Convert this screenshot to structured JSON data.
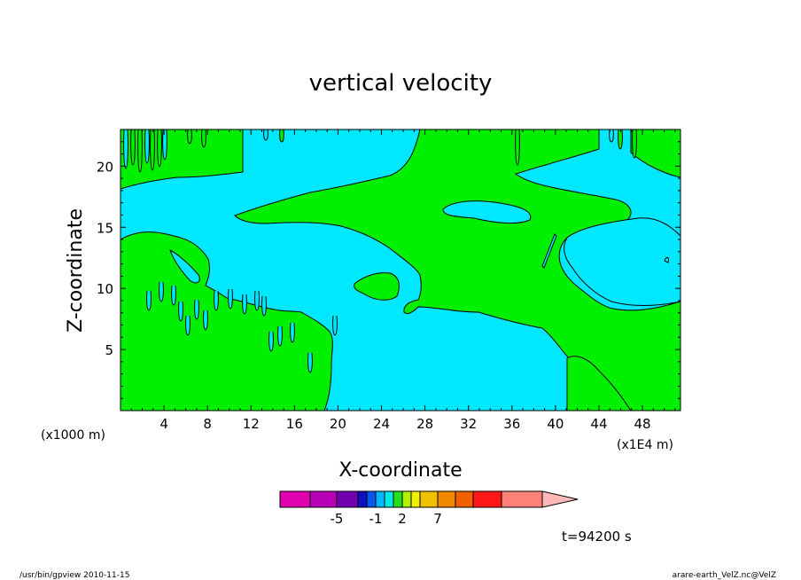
{
  "chart_data": {
    "type": "heatmap",
    "title": "vertical velocity",
    "xlabel": "X-coordinate",
    "ylabel": "Z-coordinate",
    "x_unit_left": "(x1000 m)",
    "x_unit_right": "(x1E4 m)",
    "xlim": [
      0,
      51.5
    ],
    "ylim": [
      0,
      23
    ],
    "x_ticks": [
      4,
      8,
      12,
      16,
      20,
      24,
      28,
      32,
      36,
      40,
      44,
      48
    ],
    "y_ticks": [
      5,
      10,
      15,
      20
    ],
    "fields": {
      "positive_color": "#00f000",
      "negative_color": "#00e8ff",
      "contour_color": "#000000"
    },
    "colorbar": {
      "colors": [
        "#e000b0",
        "#b800b8",
        "#7000b0",
        "#1010c0",
        "#0058f0",
        "#00b8ff",
        "#00e8e8",
        "#20e020",
        "#b0f000",
        "#f0f000",
        "#f0c000",
        "#f08800",
        "#f06000",
        "#ff1818",
        "#ff8078",
        "#ffb8b8"
      ],
      "tick_labels": [
        "-5",
        "-1",
        "2",
        "7"
      ]
    },
    "time_label": "t=94200 s"
  },
  "footer": {
    "left": "/usr/bin/gpview  2010-11-15",
    "right": "arare-earth_VelZ.nc@VelZ"
  }
}
